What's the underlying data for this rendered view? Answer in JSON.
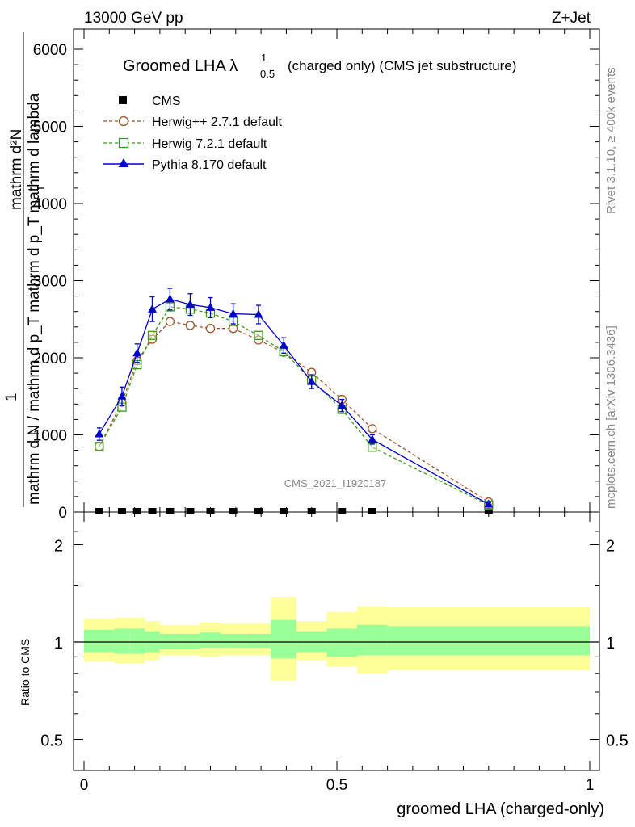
{
  "header": {
    "energy": "13000 GeV pp",
    "process": "Z+Jet",
    "title_main": "Groomed LHA λ",
    "title_sup": "1",
    "title_sub": "0.5",
    "title_rest": "(charged only) (CMS jet substructure)",
    "rivet": "Rivet 3.1.10, ≥ 400k events",
    "mcplots": "mcplots.cern.ch [arXiv:1306.3436]",
    "analysis": "CMS_2021_I1920187"
  },
  "axes": {
    "ylabel_top": "mathrm d²N",
    "ylabel_bottom": "mathrm d N / mathrm d p_T mathrm d p_T mathrm d lambda",
    "ylabel_one": "1",
    "ylabel_subT": "T",
    "ratio_ylabel": "Ratio to CMS",
    "xlabel": "groomed LHA (charged-only)",
    "main_yticks": [
      "0",
      "1000",
      "2000",
      "3000",
      "4000",
      "5000",
      "6000"
    ],
    "ratio_yticks": [
      "0.5",
      "1",
      "2"
    ],
    "xticks": [
      "0",
      "0.5",
      "1"
    ]
  },
  "legend": {
    "cms": "CMS",
    "herwigpp": "Herwig++ 2.7.1 default",
    "herwig7": "Herwig 7.2.1 default",
    "pythia": "Pythia 8.170 default"
  },
  "colors": {
    "herwigpp": "#a0522d",
    "herwig7": "#3a9a1a",
    "pythia": "#0000cc",
    "band_outer": "#ffff99",
    "band_inner": "#99ff99"
  },
  "chart_data": {
    "type": "line",
    "title": "Groomed LHA λ^1_0.5 (charged only) (CMS jet substructure)",
    "xlabel": "groomed LHA (charged-only)",
    "ylabel": "1/N dN/dλ",
    "xlim": [
      0,
      1
    ],
    "ylim": [
      0,
      6200
    ],
    "x": [
      0.03,
      0.075,
      0.105,
      0.135,
      0.17,
      0.21,
      0.25,
      0.295,
      0.345,
      0.395,
      0.45,
      0.51,
      0.57,
      0.8
    ],
    "series": [
      {
        "name": "CMS",
        "values": [
          0,
          0,
          0,
          0,
          0,
          0,
          0,
          0,
          0,
          0,
          0,
          0,
          0,
          0
        ]
      },
      {
        "name": "Herwig++ 2.7.1 default",
        "values": [
          850,
          1420,
          1960,
          2240,
          2470,
          2420,
          2380,
          2380,
          2230,
          2070,
          1810,
          1460,
          1080,
          130
        ]
      },
      {
        "name": "Herwig 7.2.1 default",
        "values": [
          850,
          1360,
          1910,
          2290,
          2660,
          2630,
          2580,
          2470,
          2290,
          2080,
          1710,
          1330,
          840,
          90
        ]
      },
      {
        "name": "Pythia 8.170 default",
        "values": [
          1010,
          1500,
          2060,
          2630,
          2760,
          2690,
          2650,
          2570,
          2560,
          2160,
          1690,
          1380,
          940,
          100
        ]
      }
    ],
    "errors": {
      "Pythia 8.170 default": [
        80,
        120,
        120,
        160,
        140,
        140,
        130,
        130,
        120,
        100,
        90,
        80,
        60,
        20
      ]
    },
    "ratio": {
      "ylabel": "Ratio to CMS",
      "ylim": [
        0.4,
        2.3
      ],
      "bins": [
        0,
        0.06,
        0.09,
        0.12,
        0.15,
        0.19,
        0.23,
        0.27,
        0.32,
        0.37,
        0.42,
        0.48,
        0.54,
        0.6,
        1.0
      ],
      "inner_lo": [
        0.93,
        0.92,
        0.92,
        0.93,
        0.95,
        0.95,
        0.96,
        0.96,
        0.96,
        0.89,
        0.93,
        0.9,
        0.91,
        0.91
      ],
      "inner_hi": [
        1.09,
        1.1,
        1.1,
        1.08,
        1.06,
        1.06,
        1.07,
        1.06,
        1.06,
        1.17,
        1.08,
        1.1,
        1.13,
        1.12
      ],
      "outer_lo": [
        0.87,
        0.86,
        0.86,
        0.88,
        0.91,
        0.91,
        0.9,
        0.91,
        0.91,
        0.76,
        0.88,
        0.84,
        0.8,
        0.82
      ],
      "outer_hi": [
        1.18,
        1.19,
        1.19,
        1.16,
        1.13,
        1.13,
        1.15,
        1.14,
        1.14,
        1.38,
        1.16,
        1.24,
        1.29,
        1.28
      ]
    }
  }
}
